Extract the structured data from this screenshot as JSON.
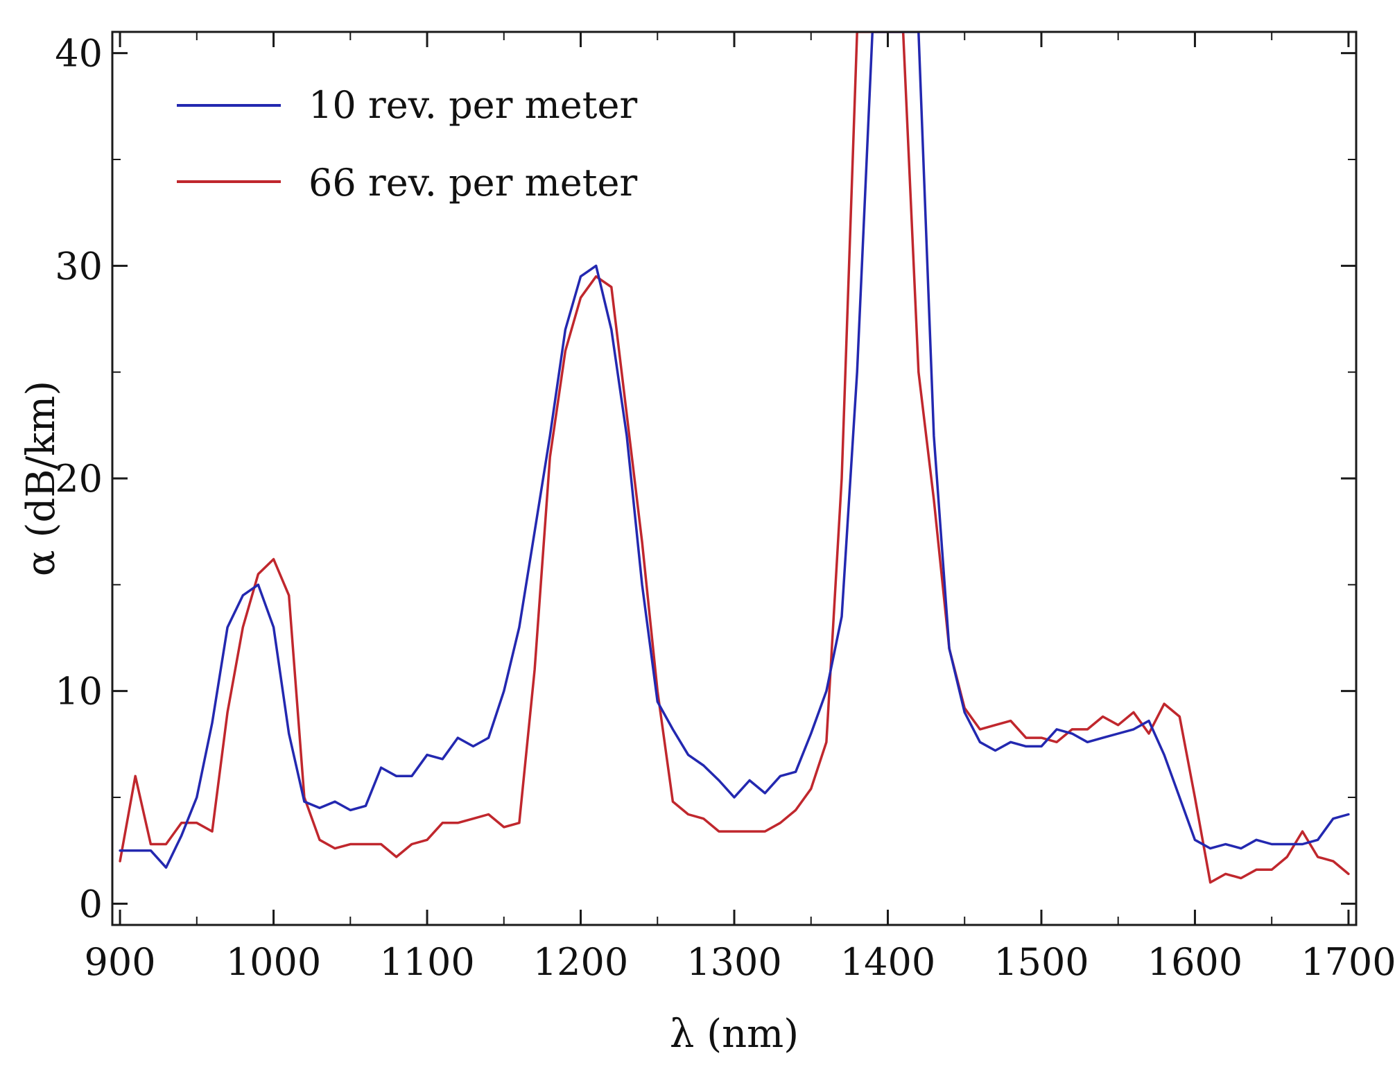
{
  "chart_data": {
    "type": "line",
    "title": "",
    "xlabel": "λ (nm)",
    "ylabel": "α (dB/km)",
    "xlim": [
      895,
      1705
    ],
    "ylim": [
      -1,
      41
    ],
    "xticks": [
      900,
      1000,
      1100,
      1200,
      1300,
      1400,
      1500,
      1600,
      1700
    ],
    "yticks": [
      0,
      10,
      20,
      30,
      40
    ],
    "grid": false,
    "legend_position": "top-left",
    "series": [
      {
        "name": "10 rev. per meter",
        "color": "#2328b0",
        "x": [
          900,
          910,
          920,
          930,
          940,
          950,
          960,
          970,
          980,
          990,
          1000,
          1010,
          1020,
          1030,
          1040,
          1050,
          1060,
          1070,
          1080,
          1090,
          1100,
          1110,
          1120,
          1130,
          1140,
          1150,
          1160,
          1170,
          1180,
          1190,
          1200,
          1210,
          1220,
          1230,
          1240,
          1250,
          1260,
          1270,
          1280,
          1290,
          1300,
          1310,
          1320,
          1330,
          1340,
          1350,
          1360,
          1370,
          1380,
          1390,
          1400,
          1410,
          1420,
          1430,
          1440,
          1450,
          1460,
          1470,
          1480,
          1490,
          1500,
          1510,
          1520,
          1530,
          1540,
          1550,
          1560,
          1570,
          1580,
          1590,
          1600,
          1610,
          1620,
          1630,
          1640,
          1650,
          1660,
          1670,
          1680,
          1690,
          1700
        ],
        "y": [
          2.5,
          2.5,
          2.5,
          1.7,
          3.2,
          5.0,
          8.5,
          13.0,
          14.5,
          15.0,
          13.0,
          8.0,
          4.8,
          4.5,
          4.8,
          4.4,
          4.6,
          6.4,
          6.0,
          6.0,
          7.0,
          6.8,
          7.8,
          7.4,
          7.8,
          10.0,
          13.0,
          17.5,
          22.0,
          27.0,
          29.5,
          30.0,
          27.0,
          22.0,
          15.0,
          9.5,
          8.2,
          7.0,
          6.5,
          5.8,
          5.0,
          5.8,
          5.2,
          6.0,
          6.2,
          8.0,
          10.0,
          13.5,
          25.0,
          41.0,
          41.0,
          41.0,
          41.0,
          22.0,
          12.0,
          9.0,
          7.6,
          7.2,
          7.6,
          7.4,
          7.4,
          8.2,
          8.0,
          7.6,
          7.8,
          8.0,
          8.2,
          8.6,
          7.0,
          5.0,
          3.0,
          2.6,
          2.8,
          2.6,
          3.0,
          2.8,
          2.8,
          2.8,
          3.0,
          4.0,
          4.2
        ]
      },
      {
        "name": "66 rev. per meter",
        "color": "#c0272d",
        "x": [
          900,
          910,
          920,
          930,
          940,
          950,
          960,
          970,
          980,
          990,
          1000,
          1010,
          1020,
          1030,
          1040,
          1050,
          1060,
          1070,
          1080,
          1090,
          1100,
          1110,
          1120,
          1130,
          1140,
          1150,
          1160,
          1170,
          1180,
          1190,
          1200,
          1210,
          1220,
          1230,
          1240,
          1250,
          1260,
          1270,
          1280,
          1290,
          1300,
          1310,
          1320,
          1330,
          1340,
          1350,
          1360,
          1370,
          1380,
          1390,
          1400,
          1410,
          1420,
          1430,
          1440,
          1450,
          1460,
          1470,
          1480,
          1490,
          1500,
          1510,
          1520,
          1530,
          1540,
          1550,
          1560,
          1570,
          1580,
          1590,
          1600,
          1610,
          1620,
          1630,
          1640,
          1650,
          1660,
          1670,
          1680,
          1690,
          1700
        ],
        "y": [
          2.0,
          6.0,
          2.8,
          2.8,
          3.8,
          3.8,
          3.4,
          9.0,
          13.0,
          15.5,
          16.2,
          14.5,
          5.0,
          3.0,
          2.6,
          2.8,
          2.8,
          2.8,
          2.2,
          2.8,
          3.0,
          3.8,
          3.8,
          4.0,
          4.2,
          3.6,
          3.8,
          11.0,
          21.0,
          26.0,
          28.5,
          29.5,
          29.0,
          23.0,
          17.0,
          10.0,
          4.8,
          4.2,
          4.0,
          3.4,
          3.4,
          3.4,
          3.4,
          3.8,
          4.4,
          5.4,
          7.6,
          20.0,
          41.0,
          41.0,
          41.0,
          41.0,
          25.0,
          19.0,
          12.0,
          9.2,
          8.2,
          8.4,
          8.6,
          7.8,
          7.8,
          7.6,
          8.2,
          8.2,
          8.8,
          8.4,
          9.0,
          8.0,
          9.4,
          8.8,
          5.0,
          1.0,
          1.4,
          1.2,
          1.6,
          1.6,
          2.2,
          3.4,
          2.2,
          2.0,
          1.4
        ]
      }
    ]
  }
}
